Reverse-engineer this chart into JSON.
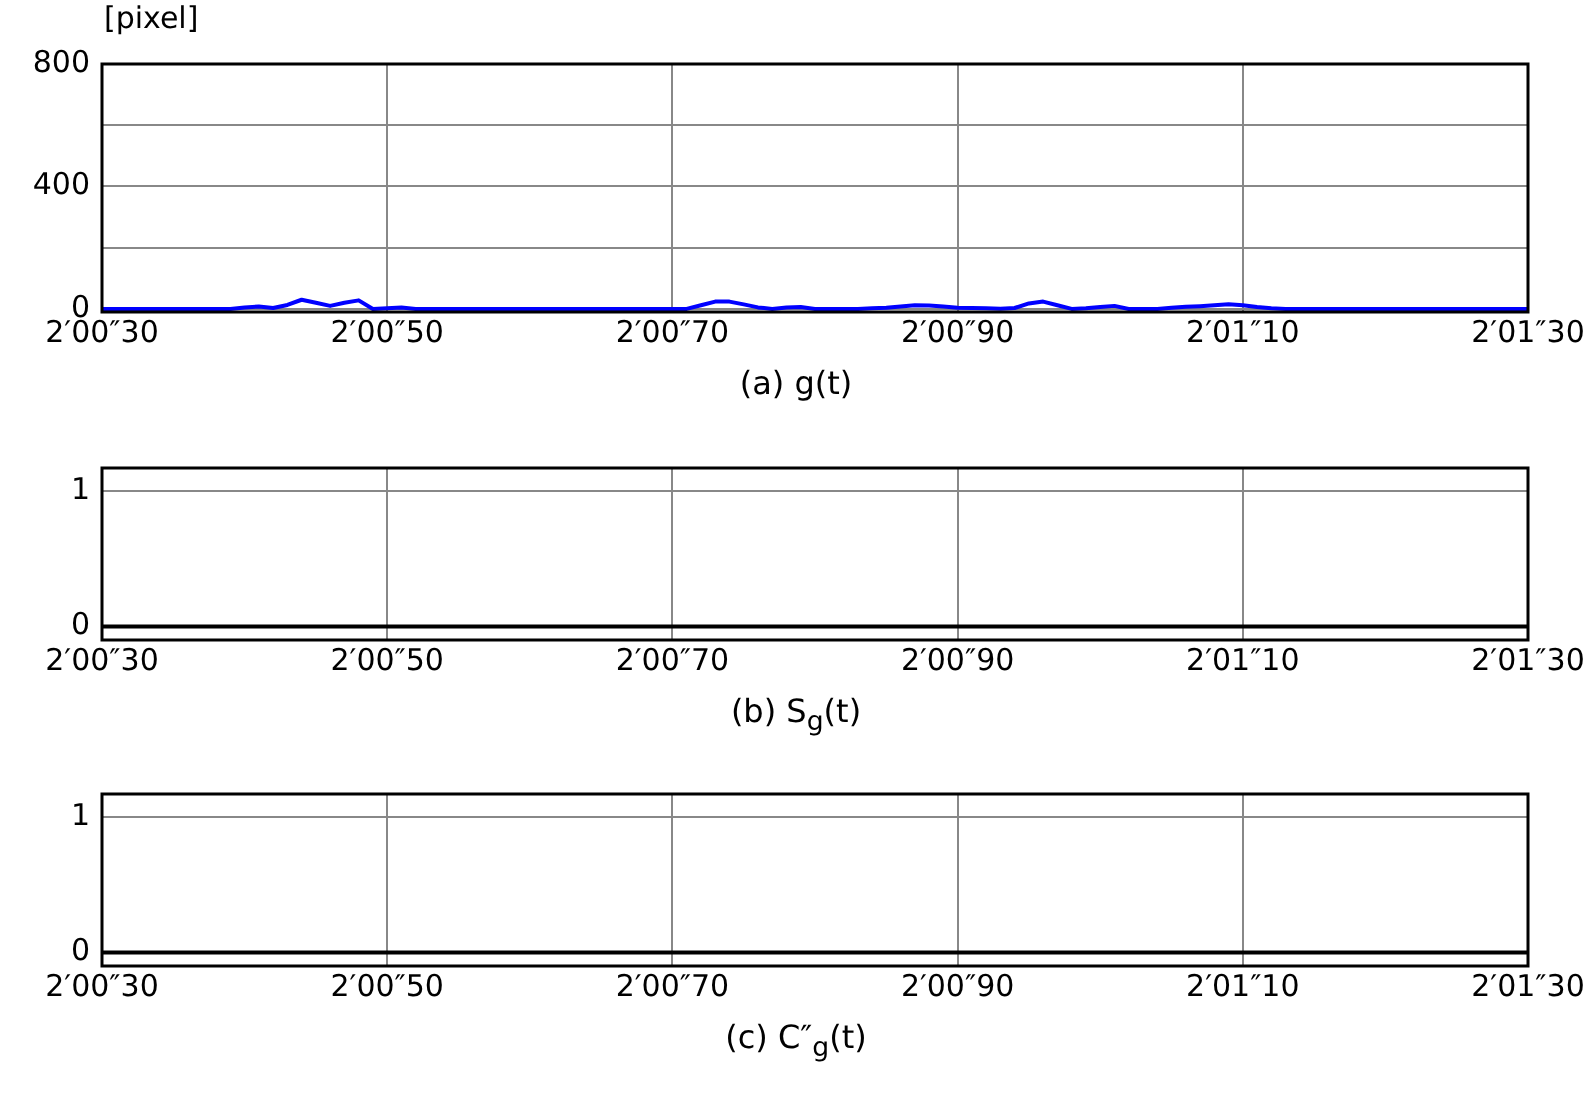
{
  "chart_data": [
    {
      "type": "line",
      "ylabel": "[pixel]",
      "xlabel": "(a) g(t)",
      "categories": [
        "2′00″30",
        null,
        null,
        null,
        null,
        null,
        null,
        null,
        null,
        null,
        null,
        null,
        null,
        null,
        null,
        null,
        null,
        null,
        null,
        null,
        "2′00″50",
        null,
        null,
        null,
        null,
        null,
        null,
        null,
        null,
        null,
        null,
        null,
        null,
        null,
        null,
        null,
        null,
        null,
        null,
        null,
        "2′00″70",
        null,
        null,
        null,
        null,
        null,
        null,
        null,
        null,
        null,
        null,
        null,
        null,
        null,
        null,
        null,
        null,
        null,
        null,
        null,
        "2′00″90",
        null,
        null,
        null,
        null,
        null,
        null,
        null,
        null,
        null,
        null,
        null,
        null,
        null,
        null,
        null,
        null,
        null,
        null,
        null,
        "2′01″10",
        null,
        null,
        null,
        null,
        null,
        null,
        null,
        null,
        null,
        null,
        null,
        null,
        null,
        null,
        null,
        null,
        null,
        null,
        null,
        "2′01″30"
      ],
      "series": [
        {
          "color": "#0000ff",
          "values": [
            0,
            0,
            0,
            0,
            0,
            0,
            0,
            0,
            0,
            0,
            5,
            8,
            3,
            13,
            30,
            20,
            10,
            20,
            28,
            0,
            2,
            5,
            0,
            0,
            0,
            0,
            0,
            0,
            0,
            0,
            0,
            0,
            0,
            0,
            0,
            0,
            0,
            0,
            0,
            0,
            0,
            0,
            12,
            24,
            24,
            15,
            5,
            0,
            5,
            6,
            0,
            0,
            0,
            0,
            2,
            4,
            8,
            12,
            11,
            8,
            4,
            3,
            2,
            1,
            3,
            18,
            24,
            12,
            0,
            2,
            6,
            10,
            0,
            0,
            0,
            4,
            7,
            9,
            12,
            15,
            12,
            6,
            2,
            0,
            0,
            0,
            0,
            0,
            0,
            0,
            0,
            0,
            0,
            0,
            0,
            0,
            0,
            0,
            0,
            0,
            0
          ]
        }
      ],
      "ylim": [
        -10,
        800
      ],
      "yticks": [
        0,
        {
          "value": 200,
          "label": null
        },
        400,
        {
          "value": 600,
          "label": null
        },
        800
      ],
      "grid": true,
      "marker": "none"
    },
    {
      "type": "line",
      "xlabel": "(b) S$_{g}$(t)",
      "categories": [
        "2′00″30",
        "2′00″50",
        "2′00″70",
        "2′00″90",
        "2′01″10",
        "2′01″30"
      ],
      "series": [
        {
          "color": "#000000",
          "values": [
            0,
            0,
            0,
            0,
            0,
            0
          ]
        }
      ],
      "ylim": [
        -0.1,
        1.17
      ],
      "yticks": [
        0,
        1
      ],
      "grid": true,
      "marker": "none"
    },
    {
      "type": "line",
      "xlabel": "(c) C″$_{g}$(t)",
      "categories": [
        "2′00″30",
        "2′00″50",
        "2′00″70",
        "2′00″90",
        "2′01″10",
        "2′01″30"
      ],
      "series": [
        {
          "color": "#000000",
          "values": [
            0,
            0,
            0,
            0,
            0,
            0
          ]
        }
      ],
      "ylim": [
        -0.1,
        1.17
      ],
      "yticks": [
        0,
        1
      ],
      "grid": true,
      "marker": "none"
    }
  ]
}
